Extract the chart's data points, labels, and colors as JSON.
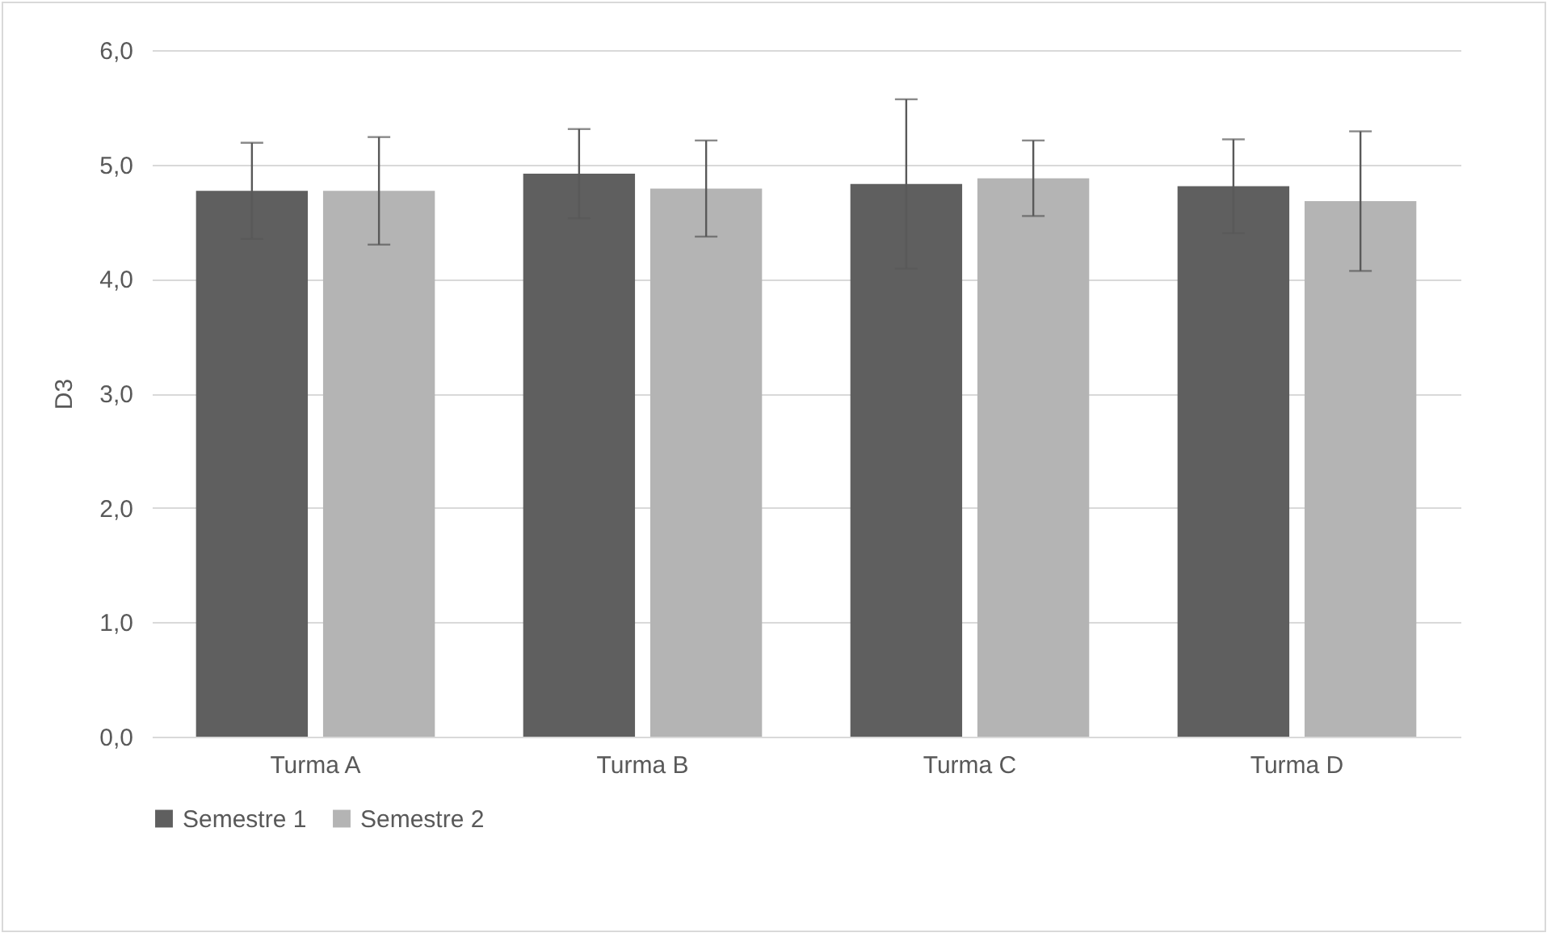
{
  "chart_data": {
    "type": "bar",
    "ylabel": "D3",
    "categories": [
      "Turma A",
      "Turma B",
      "Turma C",
      "Turma D"
    ],
    "series": [
      {
        "name": "Semestre 1",
        "color": "#5f5f5f",
        "values": [
          4.77,
          4.92,
          4.83,
          4.81
        ],
        "errors": [
          0.42,
          0.39,
          0.74,
          0.41
        ]
      },
      {
        "name": "Semestre 2",
        "color": "#b4b4b4",
        "values": [
          4.77,
          4.79,
          4.88,
          4.68
        ],
        "errors": [
          0.47,
          0.42,
          0.33,
          0.61
        ]
      }
    ],
    "ylim": [
      0,
      6
    ],
    "yticks": [
      {
        "value": 0,
        "label": "0,0"
      },
      {
        "value": 1,
        "label": "1,0"
      },
      {
        "value": 2,
        "label": "2,0"
      },
      {
        "value": 3,
        "label": "3,0"
      },
      {
        "value": 4,
        "label": "4,0"
      },
      {
        "value": 5,
        "label": "5,0"
      },
      {
        "value": 6,
        "label": "6,0"
      }
    ],
    "grid": "y",
    "legend": "bottom"
  }
}
